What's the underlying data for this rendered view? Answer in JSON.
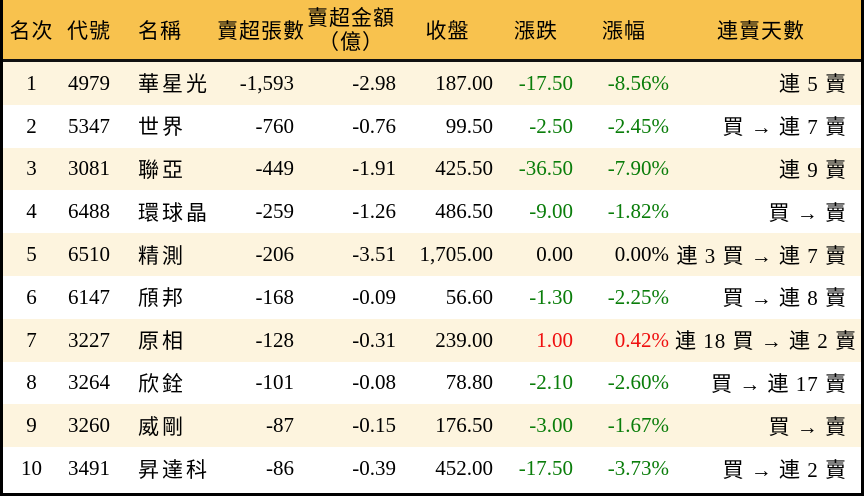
{
  "colors": {
    "header_bg": "#F8C24E",
    "row_alt_bg": "#FDF4DE",
    "row_bg": "#FFFFFF",
    "gain_red": "#EF1010",
    "loss_green": "#0A7D0A",
    "border": "#000000"
  },
  "chart_data": {
    "type": "table",
    "columns": [
      "名次",
      "代號",
      "名稱",
      "賣超張數",
      "賣超金額（億）",
      "收盤",
      "漲跌",
      "漲幅",
      "連賣天數"
    ],
    "header": {
      "rank": "名次",
      "code": "代號",
      "name": "名稱",
      "volume": "賣超張數",
      "amount_line1": "賣超金額",
      "amount_line2": "（億）",
      "close": "收盤",
      "change": "漲跌",
      "change_pct": "漲幅",
      "streak": "連賣天數"
    },
    "rows": [
      {
        "rank": "1",
        "code": "4979",
        "name": "華星光",
        "volume": "-1,593",
        "amount": "-2.98",
        "close": "187.00",
        "change": "-17.50",
        "change_pct": "-8.56%",
        "streak": "連 5 賣",
        "trend": "down"
      },
      {
        "rank": "2",
        "code": "5347",
        "name": "世界",
        "volume": "-760",
        "amount": "-0.76",
        "close": "99.50",
        "change": "-2.50",
        "change_pct": "-2.45%",
        "streak": "買 → 連 7 賣",
        "trend": "down"
      },
      {
        "rank": "3",
        "code": "3081",
        "name": "聯亞",
        "volume": "-449",
        "amount": "-1.91",
        "close": "425.50",
        "change": "-36.50",
        "change_pct": "-7.90%",
        "streak": "連 9 賣",
        "trend": "down"
      },
      {
        "rank": "4",
        "code": "6488",
        "name": "環球晶",
        "volume": "-259",
        "amount": "-1.26",
        "close": "486.50",
        "change": "-9.00",
        "change_pct": "-1.82%",
        "streak": "買 → 賣",
        "trend": "down"
      },
      {
        "rank": "5",
        "code": "6510",
        "name": "精測",
        "volume": "-206",
        "amount": "-3.51",
        "close": "1,705.00",
        "change": "0.00",
        "change_pct": "0.00%",
        "streak": "連 3 買 → 連 7 賣",
        "trend": "flat"
      },
      {
        "rank": "6",
        "code": "6147",
        "name": "頎邦",
        "volume": "-168",
        "amount": "-0.09",
        "close": "56.60",
        "change": "-1.30",
        "change_pct": "-2.25%",
        "streak": "買 → 連 8 賣",
        "trend": "down"
      },
      {
        "rank": "7",
        "code": "3227",
        "name": "原相",
        "volume": "-128",
        "amount": "-0.31",
        "close": "239.00",
        "change": "1.00",
        "change_pct": "0.42%",
        "streak": "連 18 買 → 連 2 賣",
        "trend": "up"
      },
      {
        "rank": "8",
        "code": "3264",
        "name": "欣銓",
        "volume": "-101",
        "amount": "-0.08",
        "close": "78.80",
        "change": "-2.10",
        "change_pct": "-2.60%",
        "streak": "買 → 連 17 賣",
        "trend": "down"
      },
      {
        "rank": "9",
        "code": "3260",
        "name": "威剛",
        "volume": "-87",
        "amount": "-0.15",
        "close": "176.50",
        "change": "-3.00",
        "change_pct": "-1.67%",
        "streak": "買 → 賣",
        "trend": "down"
      },
      {
        "rank": "10",
        "code": "3491",
        "name": "昇達科",
        "volume": "-86",
        "amount": "-0.39",
        "close": "452.00",
        "change": "-17.50",
        "change_pct": "-3.73%",
        "streak": "買 → 連 2 賣",
        "trend": "down"
      }
    ]
  }
}
